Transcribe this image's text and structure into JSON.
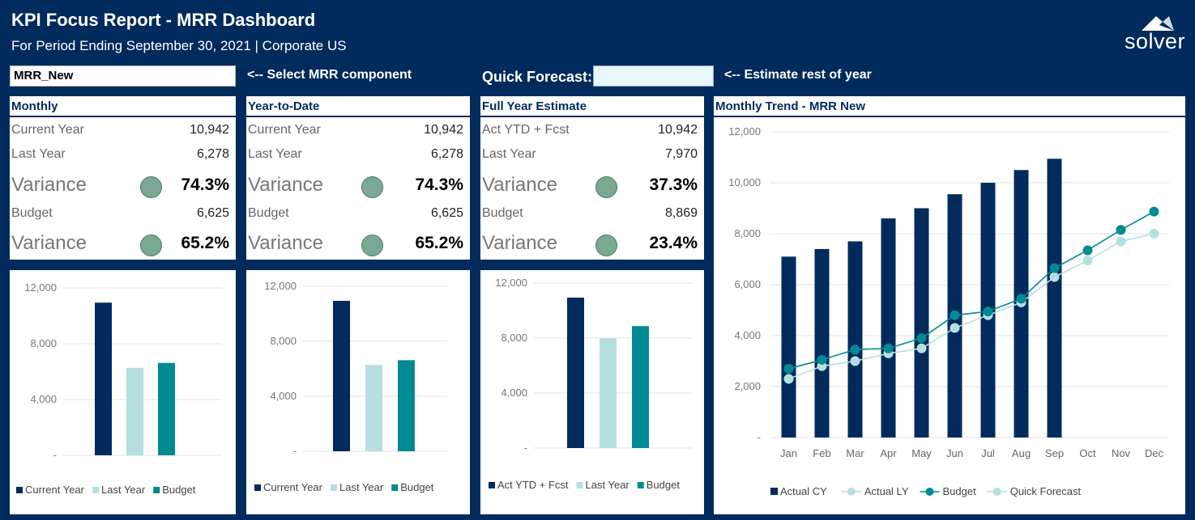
{
  "header": {
    "title": "KPI Focus Report - MRR Dashboard",
    "subtitle": "For Period Ending September 30, 2021 | Corporate US",
    "logo_text": "solver"
  },
  "controls": {
    "component_value": "MRR_New",
    "component_note": "<-- Select MRR component",
    "quick_forecast_label": "Quick Forecast:",
    "quick_forecast_value": "",
    "estimate_note": "<-- Estimate rest of year"
  },
  "cards": [
    {
      "title": "Monthly",
      "current_label": "Current Year",
      "current_value": "10,942",
      "last_label": "Last Year",
      "last_value": "6,278",
      "variance1_label": "Variance",
      "variance1_value": "74.3%",
      "budget_label": "Budget",
      "budget_value": "6,625",
      "variance2_label": "Variance",
      "variance2_value": "65.2%"
    },
    {
      "title": "Year-to-Date",
      "current_label": "Current Year",
      "current_value": "10,942",
      "last_label": "Last Year",
      "last_value": "6,278",
      "variance1_label": "Variance",
      "variance1_value": "74.3%",
      "budget_label": "Budget",
      "budget_value": "6,625",
      "variance2_label": "Variance",
      "variance2_value": "65.2%"
    },
    {
      "title": "Full Year Estimate",
      "current_label": "Act YTD + Fcst",
      "current_value": "10,942",
      "last_label": "Last Year",
      "last_value": "7,970",
      "variance1_label": "Variance",
      "variance1_value": "37.3%",
      "budget_label": "Budget",
      "budget_value": "8,869",
      "variance2_label": "Variance",
      "variance2_value": "23.4%"
    }
  ],
  "trend_title": "Monthly Trend - MRR New",
  "colors": {
    "navy": "#002b5c",
    "light_teal": "#b5dfe0",
    "teal": "#008a94",
    "status_green": "#7aa892"
  },
  "chart_data": [
    {
      "type": "bar",
      "categories": [
        "Current Year",
        "Last Year",
        "Budget"
      ],
      "values": [
        10942,
        6278,
        6625
      ],
      "ylim": [
        0,
        12000
      ],
      "yticks": [
        "-",
        "4,000",
        "8,000",
        "12,000"
      ],
      "legend": [
        "Current Year",
        "Last Year",
        "Budget"
      ],
      "legend_position": "bottom"
    },
    {
      "type": "bar",
      "categories": [
        "Current Year",
        "Last Year",
        "Budget"
      ],
      "values": [
        10942,
        6278,
        6625
      ],
      "ylim": [
        0,
        12000
      ],
      "yticks": [
        "-",
        "4,000",
        "8,000",
        "12,000"
      ],
      "legend": [
        "Current Year",
        "Last Year",
        "Budget"
      ],
      "legend_position": "bottom"
    },
    {
      "type": "bar",
      "categories": [
        "Act YTD + Fcst",
        "Last Year",
        "Budget"
      ],
      "values": [
        10942,
        7970,
        8869
      ],
      "ylim": [
        0,
        12000
      ],
      "yticks": [
        "-",
        "4,000",
        "8,000",
        "12,000"
      ],
      "legend": [
        "Act YTD + Fcst",
        "Last Year",
        "Budget"
      ],
      "legend_position": "bottom"
    },
    {
      "type": "bar+line",
      "title": "Monthly Trend - MRR New",
      "categories": [
        "Jan",
        "Feb",
        "Mar",
        "Apr",
        "May",
        "Jun",
        "Jul",
        "Aug",
        "Sep",
        "Oct",
        "Nov",
        "Dec"
      ],
      "series": [
        {
          "name": "Actual CY",
          "type": "bar",
          "values": [
            7100,
            7400,
            7700,
            8600,
            9000,
            9550,
            10000,
            10500,
            10942,
            null,
            null,
            null
          ]
        },
        {
          "name": "Actual LY",
          "type": "line",
          "values": [
            2300,
            2800,
            3000,
            3300,
            3500,
            4300,
            4800,
            5300,
            6300,
            6950,
            7700,
            8000
          ]
        },
        {
          "name": "Budget",
          "type": "line",
          "values": [
            2700,
            3050,
            3450,
            3500,
            3900,
            4800,
            4950,
            5450,
            6650,
            7350,
            8150,
            8869
          ]
        },
        {
          "name": "Quick Forecast",
          "type": "line",
          "values": [
            null,
            null,
            null,
            null,
            null,
            null,
            null,
            null,
            null,
            null,
            null,
            null
          ]
        }
      ],
      "ylim": [
        0,
        12000
      ],
      "yticks": [
        "-",
        "2,000",
        "4,000",
        "6,000",
        "8,000",
        "10,000",
        "12,000"
      ],
      "legend_position": "bottom"
    }
  ]
}
